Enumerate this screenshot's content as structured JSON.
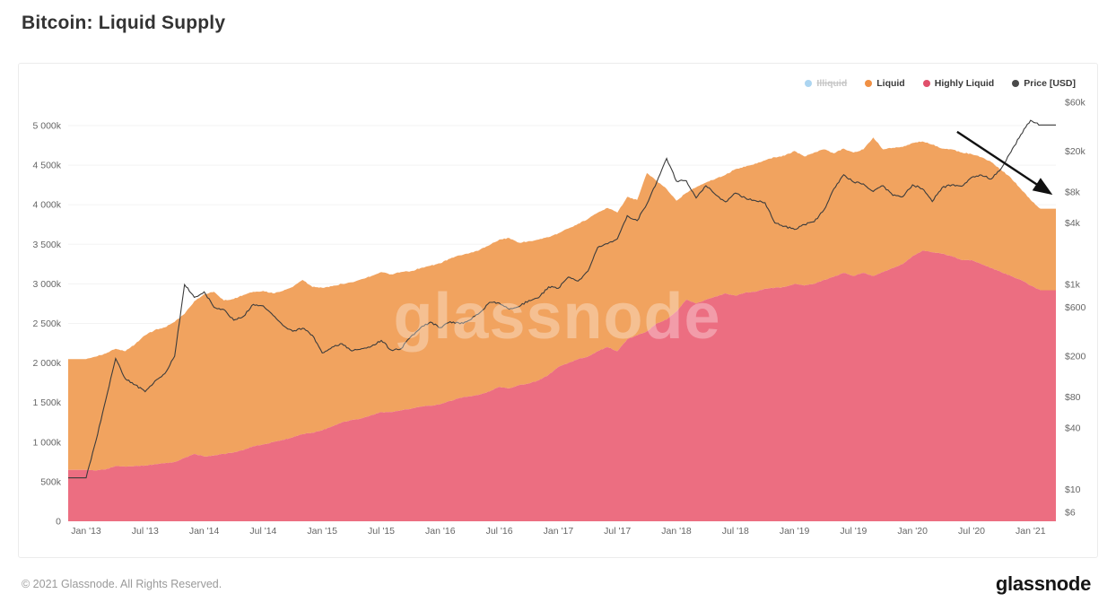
{
  "page": {
    "title": "Bitcoin: Liquid Supply",
    "watermark": "glassnode",
    "footer_copyright": "© 2021 Glassnode. All Rights Reserved.",
    "footer_logo": "glassnode"
  },
  "legend": {
    "items": [
      {
        "label": "Illiquid",
        "color": "#46a2e0",
        "disabled": true
      },
      {
        "label": "Liquid",
        "color": "#f09044",
        "disabled": false
      },
      {
        "label": "Highly Liquid",
        "color": "#e0506b",
        "disabled": false
      },
      {
        "label": "Price [USD]",
        "color": "#4a4a4a",
        "disabled": false
      }
    ]
  },
  "chart_data": {
    "type": "area",
    "stacked": true,
    "title": "Bitcoin: Liquid Supply",
    "x_start_year": 2013,
    "x_step_months": 1,
    "x_ticks": [
      {
        "t": 2013.0,
        "label": "Jan '13"
      },
      {
        "t": 2013.5,
        "label": "Jul '13"
      },
      {
        "t": 2014.0,
        "label": "Jan '14"
      },
      {
        "t": 2014.5,
        "label": "Jul '14"
      },
      {
        "t": 2015.0,
        "label": "Jan '15"
      },
      {
        "t": 2015.5,
        "label": "Jul '15"
      },
      {
        "t": 2016.0,
        "label": "Jan '16"
      },
      {
        "t": 2016.5,
        "label": "Jul '16"
      },
      {
        "t": 2017.0,
        "label": "Jan '17"
      },
      {
        "t": 2017.5,
        "label": "Jul '17"
      },
      {
        "t": 2018.0,
        "label": "Jan '18"
      },
      {
        "t": 2018.5,
        "label": "Jul '18"
      },
      {
        "t": 2019.0,
        "label": "Jan '19"
      },
      {
        "t": 2019.5,
        "label": "Jul '19"
      },
      {
        "t": 2020.0,
        "label": "Jan '20"
      },
      {
        "t": 2020.5,
        "label": "Jul '20"
      },
      {
        "t": 2021.0,
        "label": "Jan '21"
      }
    ],
    "left_axis": {
      "unit": "BTC (thousands)",
      "range": [
        0,
        5000
      ],
      "grid": true,
      "ticks": [
        {
          "v": 0,
          "label": "0"
        },
        {
          "v": 500,
          "label": "500k"
        },
        {
          "v": 1000,
          "label": "1 000k"
        },
        {
          "v": 1500,
          "label": "1 500k"
        },
        {
          "v": 2000,
          "label": "2 000k"
        },
        {
          "v": 2500,
          "label": "2 500k"
        },
        {
          "v": 3000,
          "label": "3 000k"
        },
        {
          "v": 3500,
          "label": "3 500k"
        },
        {
          "v": 4000,
          "label": "4 000k"
        },
        {
          "v": 4500,
          "label": "4 500k"
        },
        {
          "v": 5000,
          "label": "5 000k"
        }
      ]
    },
    "right_axis": {
      "unit": "USD",
      "scale": "log",
      "ticks": [
        {
          "v": 60000,
          "label": "$60k"
        },
        {
          "v": 20000,
          "label": "$20k"
        },
        {
          "v": 8000,
          "label": "$8k"
        },
        {
          "v": 4000,
          "label": "$4k"
        },
        {
          "v": 1000,
          "label": "$1k"
        },
        {
          "v": 600,
          "label": "$600"
        },
        {
          "v": 200,
          "label": "$200"
        },
        {
          "v": 80,
          "label": "$80"
        },
        {
          "v": 40,
          "label": "$40"
        },
        {
          "v": 10,
          "label": "$10"
        },
        {
          "v": 6,
          "label": "$6"
        }
      ]
    },
    "legend_position": "top-right",
    "series": [
      {
        "name": "Highly Liquid",
        "axis": "left",
        "style": "area",
        "color": "#ec6e81",
        "values": [
          650,
          640,
          655,
          700,
          690,
          700,
          705,
          720,
          735,
          750,
          800,
          850,
          820,
          830,
          850,
          870,
          900,
          950,
          970,
          1000,
          1030,
          1060,
          1100,
          1120,
          1150,
          1200,
          1250,
          1280,
          1300,
          1340,
          1380,
          1380,
          1400,
          1420,
          1450,
          1460,
          1480,
          1520,
          1560,
          1580,
          1600,
          1640,
          1700,
          1680,
          1720,
          1740,
          1780,
          1850,
          1950,
          2000,
          2050,
          2080,
          2150,
          2200,
          2150,
          2300,
          2350,
          2400,
          2500,
          2550,
          2650,
          2800,
          2750,
          2800,
          2840,
          2880,
          2850,
          2890,
          2900,
          2940,
          2950,
          2960,
          3000,
          2980,
          3000,
          3050,
          3090,
          3140,
          3100,
          3140,
          3100,
          3150,
          3200,
          3250,
          3350,
          3420,
          3400,
          3380,
          3350,
          3300,
          3300,
          3250,
          3200,
          3150,
          3100,
          3050,
          2980,
          2920
        ]
      },
      {
        "name": "Liquid",
        "axis": "left",
        "style": "area",
        "color": "#f1a35f",
        "values": [
          1400,
          1440,
          1465,
          1480,
          1460,
          1540,
          1645,
          1700,
          1715,
          1770,
          1820,
          1930,
          2050,
          2070,
          1940,
          1940,
          1960,
          1950,
          1940,
          1880,
          1880,
          1900,
          1950,
          1840,
          1800,
          1770,
          1750,
          1740,
          1760,
          1760,
          1770,
          1740,
          1750,
          1740,
          1750,
          1770,
          1780,
          1800,
          1800,
          1810,
          1830,
          1850,
          1860,
          1900,
          1800,
          1800,
          1780,
          1740,
          1690,
          1700,
          1710,
          1740,
          1750,
          1760,
          1750,
          1800,
          1710,
          2000,
          1800,
          1650,
          1400,
          1350,
          1470,
          1480,
          1490,
          1500,
          1600,
          1590,
          1620,
          1620,
          1650,
          1660,
          1680,
          1630,
          1660,
          1650,
          1560,
          1570,
          1560,
          1560,
          1750,
          1550,
          1520,
          1480,
          1430,
          1380,
          1360,
          1330,
          1350,
          1360,
          1340,
          1350,
          1340,
          1290,
          1240,
          1150,
          1080,
          1030
        ]
      },
      {
        "name": "Price [USD]",
        "axis": "right",
        "style": "line",
        "color": "#3c3c3c",
        "values": [
          13,
          30,
          75,
          190,
          120,
          105,
          90,
          115,
          135,
          200,
          1000,
          750,
          850,
          600,
          570,
          450,
          490,
          640,
          620,
          500,
          400,
          350,
          375,
          320,
          215,
          245,
          265,
          225,
          237,
          250,
          285,
          230,
          236,
          310,
          380,
          430,
          380,
          435,
          415,
          450,
          530,
          670,
          660,
          575,
          610,
          700,
          745,
          950,
          920,
          1180,
          1080,
          1350,
          2300,
          2500,
          2800,
          4700,
          4200,
          6100,
          10000,
          17000,
          10200,
          10300,
          7000,
          9200,
          7500,
          6400,
          7800,
          7000,
          6600,
          6300,
          4000,
          3700,
          3450,
          3850,
          4100,
          5350,
          8600,
          11800,
          10000,
          9600,
          8100,
          9200,
          7400,
          7200,
          9400,
          8600,
          6450,
          8800,
          9400,
          9100,
          11100,
          11700,
          10700,
          13500,
          19600,
          29000,
          40000,
          36000
        ]
      }
    ],
    "annotations": [
      {
        "type": "arrow",
        "color": "#111111",
        "x1_frac": 0.9,
        "y1_frac": 0.095,
        "x2_frac": 0.993,
        "y2_frac": 0.235
      }
    ]
  }
}
